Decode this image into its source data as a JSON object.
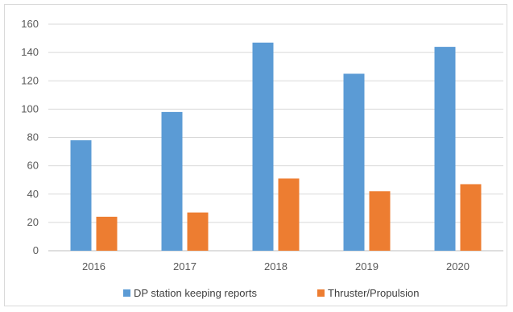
{
  "chart_data": {
    "type": "bar",
    "title": "",
    "xlabel": "",
    "ylabel": "",
    "categories": [
      "2016",
      "2017",
      "2018",
      "2019",
      "2020"
    ],
    "series": [
      {
        "name": "DP station keeping reports",
        "values": [
          78,
          98,
          147,
          125,
          144
        ],
        "color": "#5b9bd5"
      },
      {
        "name": "Thruster/Propulsion",
        "values": [
          24,
          27,
          51,
          42,
          47
        ],
        "color": "#ed7d31"
      }
    ],
    "ylim": [
      0,
      160
    ],
    "yticks": [
      0,
      20,
      40,
      60,
      80,
      100,
      120,
      140,
      160
    ],
    "grid": true,
    "legend_position": "bottom"
  },
  "colors": {
    "grid": "#d9d9d9",
    "axis": "#bfbfbf",
    "text": "#595959"
  }
}
